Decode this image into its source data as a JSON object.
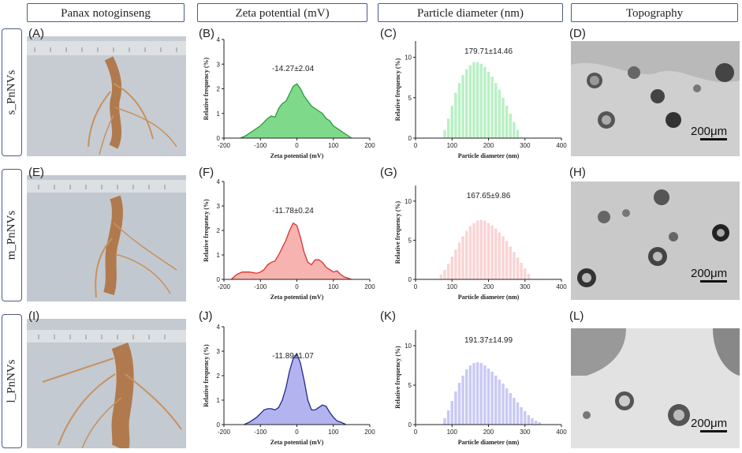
{
  "headers": {
    "col1": "Panax notoginseng",
    "col2": "Zeta potential (mV)",
    "col3": "Particle diameter (nm)",
    "col4": "Topography"
  },
  "rows": [
    {
      "label": "s_PnNVs"
    },
    {
      "label": "m_PnNVs"
    },
    {
      "label": "l_PnNVs"
    }
  ],
  "panel_letters": [
    "(A)",
    "(B)",
    "(C)",
    "(D)",
    "(E)",
    "(F)",
    "(G)",
    "(H)",
    "(I)",
    "(J)",
    "(K)",
    "(L)"
  ],
  "scale_bar": "200μm",
  "colors": {
    "zeta": [
      "#2e9a3a",
      "#d9342f",
      "#1f2a8a"
    ],
    "zeta_fill": [
      "#7fd98a",
      "#f7b3b0",
      "#b3b3f0"
    ],
    "size_fill": [
      "#b9f0c5",
      "#f9d4d4",
      "#c9c9f4"
    ]
  },
  "chart_data": [
    {
      "panel": "B",
      "type": "area",
      "title": "-14.27±2.04",
      "xlabel": "Zeta potential (mV)",
      "ylabel": "Relative frequency (%)",
      "xlim": [
        -200,
        200
      ],
      "ylim": [
        0,
        4
      ],
      "xticks": [
        "-200",
        "-100",
        "0",
        "100",
        "200"
      ],
      "yticks": [
        "0",
        "1",
        "2",
        "3",
        "4"
      ],
      "x": [
        -155,
        -140,
        -120,
        -100,
        -90,
        -80,
        -70,
        -60,
        -50,
        -40,
        -30,
        -20,
        -10,
        0,
        10,
        20,
        30,
        40,
        50,
        60,
        70,
        80,
        90,
        100,
        110,
        120,
        130,
        140,
        150
      ],
      "y": [
        0,
        0.1,
        0.3,
        0.5,
        0.65,
        0.8,
        0.9,
        0.85,
        1.2,
        1.4,
        1.5,
        1.8,
        2.1,
        2.2,
        2.0,
        1.7,
        1.5,
        1.3,
        1.2,
        1.1,
        1.0,
        0.8,
        0.7,
        0.5,
        0.4,
        0.3,
        0.2,
        0.1,
        0
      ]
    },
    {
      "panel": "C",
      "type": "bar",
      "title": "179.71±14.46",
      "xlabel": "Particle diameter (nm)",
      "ylabel": "Relative frequency (%)",
      "xlim": [
        0,
        400
      ],
      "ylim": [
        0,
        12
      ],
      "xticks": [
        "0",
        "100",
        "200",
        "300",
        "400"
      ],
      "yticks": [
        "0",
        "5",
        "10"
      ],
      "x": [
        80,
        90,
        100,
        110,
        120,
        130,
        140,
        150,
        160,
        170,
        180,
        190,
        200,
        210,
        220,
        230,
        240,
        250,
        260,
        270,
        280
      ],
      "values": [
        1.0,
        2.4,
        4.0,
        5.6,
        6.8,
        7.8,
        8.5,
        9.0,
        9.4,
        9.4,
        9.2,
        8.8,
        8.2,
        7.6,
        6.8,
        6.0,
        5.0,
        4.0,
        3.0,
        2.0,
        1.0
      ]
    },
    {
      "panel": "F",
      "type": "area",
      "title": "-11.78±0.24",
      "xlabel": "Zeta potential (mV)",
      "ylabel": "Relative frequency (%)",
      "xlim": [
        -200,
        200
      ],
      "ylim": [
        0,
        4
      ],
      "xticks": [
        "-200",
        "-100",
        "0",
        "100",
        "200"
      ],
      "yticks": [
        "0",
        "1",
        "2",
        "3",
        "4"
      ],
      "x": [
        -180,
        -165,
        -150,
        -130,
        -110,
        -100,
        -90,
        -80,
        -70,
        -60,
        -50,
        -40,
        -30,
        -20,
        -10,
        0,
        10,
        20,
        30,
        40,
        50,
        60,
        70,
        80,
        90,
        100,
        110,
        120,
        130,
        150
      ],
      "y": [
        0,
        0.2,
        0.3,
        0.3,
        0.25,
        0.3,
        0.4,
        0.6,
        0.7,
        0.75,
        1.0,
        1.3,
        1.6,
        2.0,
        2.3,
        2.2,
        1.7,
        1.1,
        0.7,
        0.6,
        0.8,
        0.8,
        0.7,
        0.5,
        0.4,
        0.3,
        0.35,
        0.2,
        0.1,
        0
      ]
    },
    {
      "panel": "G",
      "type": "bar",
      "title": "167.65±9.86",
      "xlabel": "Particle diameter (nm)",
      "ylabel": "Relative frequency (%)",
      "xlim": [
        0,
        400
      ],
      "ylim": [
        0,
        12
      ],
      "xticks": [
        "0",
        "100",
        "200",
        "300",
        "400"
      ],
      "yticks": [
        "0",
        "5",
        "10"
      ],
      "x": [
        70,
        80,
        90,
        100,
        110,
        120,
        130,
        140,
        150,
        160,
        170,
        180,
        190,
        200,
        210,
        220,
        230,
        240,
        250,
        260,
        270,
        280,
        290,
        300,
        310
      ],
      "values": [
        0.6,
        1.2,
        2.0,
        2.9,
        3.8,
        4.7,
        5.5,
        6.2,
        6.8,
        7.2,
        7.5,
        7.6,
        7.5,
        7.2,
        6.9,
        6.5,
        6.0,
        5.5,
        4.9,
        4.2,
        3.5,
        2.8,
        2.1,
        1.4,
        0.7
      ]
    },
    {
      "panel": "J",
      "type": "area",
      "title": "-11.89±1.07",
      "xlabel": "Zeta potential (mV)",
      "ylabel": "Relative frequency (%)",
      "xlim": [
        -200,
        200
      ],
      "ylim": [
        0,
        4
      ],
      "xticks": [
        "-200",
        "-100",
        "0",
        "100",
        "200"
      ],
      "yticks": [
        "0",
        "1",
        "2",
        "3",
        "4"
      ],
      "x": [
        -145,
        -130,
        -110,
        -100,
        -90,
        -80,
        -70,
        -60,
        -50,
        -40,
        -30,
        -20,
        -10,
        0,
        10,
        20,
        30,
        40,
        50,
        60,
        70,
        80,
        90,
        100,
        110,
        120,
        135
      ],
      "y": [
        0,
        0.1,
        0.3,
        0.45,
        0.6,
        0.65,
        0.65,
        0.6,
        0.7,
        1.0,
        1.5,
        2.2,
        2.7,
        2.9,
        2.5,
        1.8,
        1.0,
        0.6,
        0.6,
        0.7,
        0.8,
        0.75,
        0.5,
        0.3,
        0.15,
        0.1,
        0
      ]
    },
    {
      "panel": "K",
      "type": "bar",
      "title": "191.37±14.99",
      "xlabel": "Particle diameter (nm)",
      "ylabel": "Relative frequency (%)",
      "xlim": [
        0,
        400
      ],
      "ylim": [
        0,
        12
      ],
      "xticks": [
        "0",
        "100",
        "200",
        "300",
        "400"
      ],
      "yticks": [
        "0",
        "5",
        "10"
      ],
      "x": [
        80,
        90,
        100,
        110,
        120,
        130,
        140,
        150,
        160,
        170,
        180,
        190,
        200,
        210,
        220,
        230,
        240,
        250,
        260,
        270,
        280,
        290,
        300,
        310,
        320,
        330,
        340
      ],
      "values": [
        0.8,
        1.8,
        3.0,
        4.2,
        5.3,
        6.2,
        7.0,
        7.5,
        7.8,
        7.9,
        7.8,
        7.5,
        7.1,
        6.7,
        6.2,
        5.7,
        5.2,
        4.6,
        4.0,
        3.4,
        2.8,
        2.2,
        1.7,
        1.2,
        0.8,
        0.5,
        0.3
      ]
    }
  ]
}
